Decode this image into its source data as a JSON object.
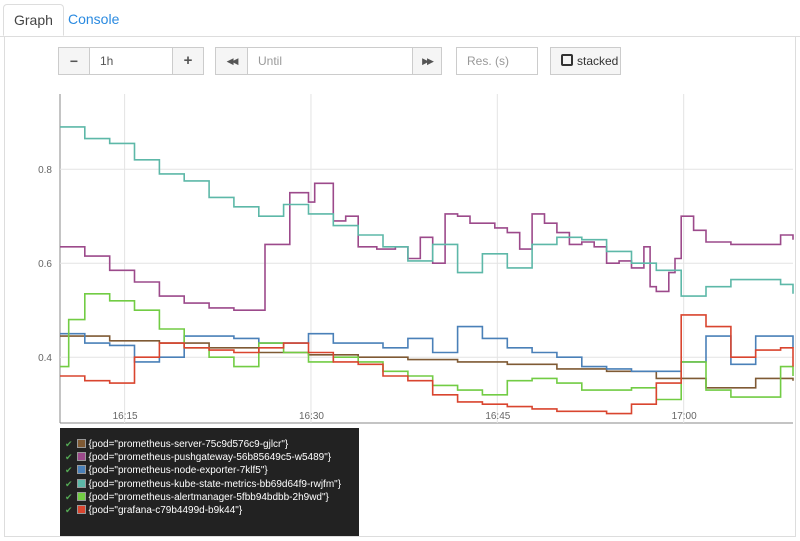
{
  "tabs": {
    "graph": "Graph",
    "console": "Console"
  },
  "controls": {
    "minus_label": "−",
    "range_value": "1h",
    "plus_label": "+",
    "back_label": "◀◀",
    "until_placeholder": "Until",
    "forward_label": "▶▶",
    "res_placeholder": "Res. (s)",
    "stacked_label": "stacked"
  },
  "chart_data": {
    "type": "line",
    "x_ticks": [
      "16:15",
      "16:30",
      "16:45",
      "17:00"
    ],
    "y_ticks": [
      "0.4",
      "0.6",
      "0.8"
    ],
    "ylim": [
      0.26,
      0.96
    ],
    "xlim": [
      0,
      59
    ],
    "grid": true,
    "legend_placement": "bottom-left",
    "series": [
      {
        "name": "{pod=\"prometheus-server-75c9d576c9-gjlcr\"}",
        "color": "#7f5a34",
        "x": [
          0,
          4,
          8,
          12,
          16,
          20,
          24,
          28,
          32,
          36,
          40,
          44,
          48,
          52,
          56,
          59
        ],
        "values": [
          0.445,
          0.435,
          0.43,
          0.42,
          0.41,
          0.405,
          0.4,
          0.395,
          0.39,
          0.385,
          0.375,
          0.37,
          0.355,
          0.335,
          0.355,
          0.35
        ]
      },
      {
        "name": "{pod=\"prometheus-pushgateway-56b85649c5-w5489\"}",
        "color": "#9c4a8b",
        "x": [
          0,
          2,
          4,
          6,
          8,
          10,
          12,
          14,
          16,
          16.5,
          18,
          18.5,
          20,
          20.5,
          22,
          23,
          24,
          25.5,
          27,
          28,
          29,
          30,
          31,
          32,
          33,
          35,
          36,
          37,
          38,
          39,
          40,
          41,
          42,
          43,
          44,
          45,
          46,
          47,
          47.5,
          48,
          49,
          49.5,
          50,
          51,
          52,
          54,
          56,
          58,
          59
        ],
        "values": [
          0.635,
          0.615,
          0.585,
          0.56,
          0.53,
          0.515,
          0.505,
          0.5,
          0.5,
          0.64,
          0.64,
          0.75,
          0.73,
          0.77,
          0.69,
          0.7,
          0.635,
          0.63,
          0.635,
          0.61,
          0.655,
          0.6,
          0.705,
          0.7,
          0.685,
          0.675,
          0.665,
          0.63,
          0.705,
          0.685,
          0.665,
          0.64,
          0.645,
          0.635,
          0.6,
          0.605,
          0.59,
          0.635,
          0.55,
          0.54,
          0.58,
          0.61,
          0.7,
          0.67,
          0.645,
          0.64,
          0.64,
          0.66,
          0.65
        ]
      },
      {
        "name": "{pod=\"prometheus-node-exporter-7klf5\"}",
        "color": "#4a80b8",
        "x": [
          0,
          2,
          4,
          6,
          8,
          10,
          12,
          14,
          16,
          18,
          20,
          22,
          24,
          26,
          28,
          30,
          32,
          34,
          36,
          38,
          40,
          42,
          44,
          46,
          48,
          50,
          52,
          54,
          56,
          58,
          59
        ],
        "values": [
          0.45,
          0.43,
          0.425,
          0.39,
          0.4,
          0.445,
          0.445,
          0.44,
          0.43,
          0.43,
          0.45,
          0.43,
          0.43,
          0.42,
          0.44,
          0.41,
          0.465,
          0.44,
          0.42,
          0.41,
          0.4,
          0.38,
          0.375,
          0.37,
          0.37,
          0.39,
          0.445,
          0.385,
          0.445,
          0.445,
          0.42
        ]
      },
      {
        "name": "{pod=\"prometheus-kube-state-metrics-bb69d64f9-rwjfm\"}",
        "color": "#5db8a8",
        "x": [
          0,
          2,
          4,
          6,
          8,
          10,
          12,
          14,
          16,
          18,
          20,
          22,
          24,
          26,
          28,
          30,
          32,
          34,
          36,
          38,
          40,
          42,
          44,
          46,
          48,
          50,
          52,
          54,
          56,
          58,
          59
        ],
        "values": [
          0.89,
          0.865,
          0.855,
          0.82,
          0.79,
          0.775,
          0.74,
          0.72,
          0.7,
          0.725,
          0.705,
          0.68,
          0.66,
          0.635,
          0.605,
          0.64,
          0.58,
          0.62,
          0.59,
          0.64,
          0.655,
          0.65,
          0.625,
          0.6,
          0.585,
          0.53,
          0.55,
          0.565,
          0.565,
          0.555,
          0.535
        ]
      },
      {
        "name": "{pod=\"prometheus-alertmanager-5fbb94bdbb-2h9wd\"}",
        "color": "#72cc44",
        "x": [
          0,
          0.7,
          2,
          4,
          6,
          8,
          10,
          12,
          14,
          16,
          18,
          20,
          22,
          24,
          26,
          28,
          30,
          32,
          34,
          36,
          38,
          40,
          42,
          44,
          46,
          48,
          50,
          52,
          54,
          56,
          58,
          59
        ],
        "values": [
          0.38,
          0.48,
          0.535,
          0.52,
          0.5,
          0.46,
          0.42,
          0.4,
          0.38,
          0.43,
          0.41,
          0.39,
          0.4,
          0.39,
          0.37,
          0.36,
          0.34,
          0.33,
          0.32,
          0.35,
          0.355,
          0.345,
          0.33,
          0.33,
          0.335,
          0.31,
          0.39,
          0.33,
          0.315,
          0.315,
          0.38,
          0.36
        ]
      },
      {
        "name": "{pod=\"grafana-c79b4499d-b9k44\"}",
        "color": "#d9452f",
        "x": [
          0,
          2,
          4,
          6,
          8,
          10,
          12,
          14,
          16,
          18,
          20,
          22,
          24,
          26,
          28,
          30,
          32,
          34,
          36,
          38,
          40,
          42,
          44,
          46,
          48,
          50,
          52,
          54,
          56,
          58,
          59
        ],
        "values": [
          0.36,
          0.35,
          0.345,
          0.4,
          0.43,
          0.42,
          0.415,
          0.41,
          0.42,
          0.43,
          0.41,
          0.39,
          0.385,
          0.36,
          0.35,
          0.32,
          0.305,
          0.3,
          0.295,
          0.29,
          0.285,
          0.285,
          0.28,
          0.3,
          0.345,
          0.49,
          0.465,
          0.4,
          0.415,
          0.42,
          0.38
        ]
      }
    ]
  }
}
